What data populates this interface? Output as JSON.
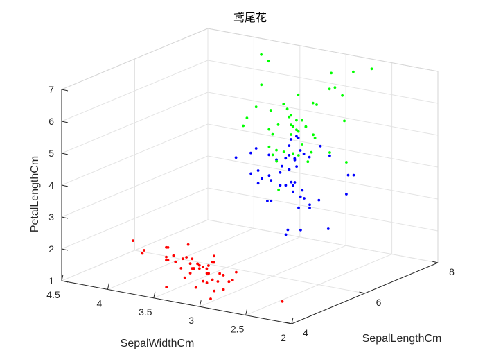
{
  "chart_data": {
    "type": "scatter3d",
    "title": "鸢尾花",
    "xlabel": "SepalLengthCm",
    "ylabel": "SepalWidthCm",
    "zlabel": "PetalLengthCm",
    "xlim": [
      4,
      8
    ],
    "ylim": [
      2,
      4.5
    ],
    "zlim": [
      1,
      7
    ],
    "x_ticks": [
      "4",
      "6",
      "8"
    ],
    "y_ticks": [
      "2",
      "2.5",
      "3",
      "3.5",
      "4",
      "4.5"
    ],
    "z_ticks": [
      "1",
      "2",
      "3",
      "4",
      "5",
      "6",
      "7"
    ],
    "grid": true,
    "series": [
      {
        "color": "#ff0000",
        "points": [
          [
            5.1,
            3.5,
            1.4
          ],
          [
            4.9,
            3.0,
            1.4
          ],
          [
            4.7,
            3.2,
            1.3
          ],
          [
            4.6,
            3.1,
            1.5
          ],
          [
            5.0,
            3.6,
            1.4
          ],
          [
            5.4,
            3.9,
            1.7
          ],
          [
            4.6,
            3.4,
            1.4
          ],
          [
            5.0,
            3.4,
            1.5
          ],
          [
            4.4,
            2.9,
            1.4
          ],
          [
            4.9,
            3.1,
            1.5
          ],
          [
            5.4,
            3.7,
            1.5
          ],
          [
            4.8,
            3.4,
            1.6
          ],
          [
            4.8,
            3.0,
            1.4
          ],
          [
            4.3,
            3.0,
            1.1
          ],
          [
            5.8,
            4.0,
            1.2
          ],
          [
            5.7,
            4.4,
            1.5
          ],
          [
            5.4,
            3.9,
            1.3
          ],
          [
            5.1,
            3.5,
            1.4
          ],
          [
            5.7,
            3.8,
            1.7
          ],
          [
            5.1,
            3.8,
            1.5
          ],
          [
            5.4,
            3.4,
            1.7
          ],
          [
            5.1,
            3.7,
            1.5
          ],
          [
            4.6,
            3.6,
            1.0
          ],
          [
            5.1,
            3.3,
            1.7
          ],
          [
            4.8,
            3.4,
            1.9
          ],
          [
            5.0,
            3.0,
            1.6
          ],
          [
            5.0,
            3.4,
            1.6
          ],
          [
            5.2,
            3.5,
            1.5
          ],
          [
            5.2,
            3.4,
            1.4
          ],
          [
            4.7,
            3.2,
            1.6
          ],
          [
            4.8,
            3.1,
            1.6
          ],
          [
            5.4,
            3.4,
            1.5
          ],
          [
            5.2,
            4.1,
            1.5
          ],
          [
            5.5,
            4.2,
            1.4
          ],
          [
            4.9,
            3.1,
            1.5
          ],
          [
            5.0,
            3.2,
            1.2
          ],
          [
            5.5,
            3.5,
            1.3
          ],
          [
            4.4,
            3.0,
            1.3
          ],
          [
            5.1,
            3.4,
            1.5
          ],
          [
            5.0,
            3.5,
            1.3
          ],
          [
            4.5,
            2.3,
            1.3
          ],
          [
            4.4,
            3.2,
            1.3
          ],
          [
            5.0,
            3.5,
            1.6
          ],
          [
            5.1,
            3.8,
            1.9
          ],
          [
            4.8,
            3.0,
            1.4
          ],
          [
            5.1,
            3.8,
            1.6
          ],
          [
            4.6,
            3.2,
            1.4
          ],
          [
            5.3,
            3.7,
            1.5
          ],
          [
            5.0,
            3.3,
            1.4
          ]
        ]
      },
      {
        "color": "#0000ff",
        "points": [
          [
            7.0,
            3.2,
            4.7
          ],
          [
            6.4,
            3.2,
            4.5
          ],
          [
            6.9,
            3.1,
            4.9
          ],
          [
            5.5,
            2.3,
            4.0
          ],
          [
            6.5,
            2.8,
            4.6
          ],
          [
            5.7,
            2.8,
            4.5
          ],
          [
            6.3,
            3.3,
            4.7
          ],
          [
            4.9,
            2.4,
            3.3
          ],
          [
            6.6,
            2.9,
            4.6
          ],
          [
            5.2,
            2.7,
            3.9
          ],
          [
            5.0,
            2.0,
            3.5
          ],
          [
            5.9,
            3.0,
            4.2
          ],
          [
            6.0,
            2.2,
            4.0
          ],
          [
            6.1,
            2.9,
            4.7
          ],
          [
            5.6,
            2.9,
            3.6
          ],
          [
            6.7,
            3.1,
            4.4
          ],
          [
            5.6,
            3.0,
            4.5
          ],
          [
            5.8,
            2.7,
            4.1
          ],
          [
            6.2,
            2.2,
            4.5
          ],
          [
            5.6,
            2.5,
            3.9
          ],
          [
            5.9,
            3.2,
            4.8
          ],
          [
            6.1,
            2.8,
            4.0
          ],
          [
            6.3,
            2.5,
            4.9
          ],
          [
            6.1,
            2.8,
            4.7
          ],
          [
            6.4,
            2.9,
            4.3
          ],
          [
            6.6,
            3.0,
            4.4
          ],
          [
            6.8,
            2.8,
            4.8
          ],
          [
            6.7,
            3.0,
            5.0
          ],
          [
            6.0,
            2.9,
            4.5
          ],
          [
            5.7,
            2.6,
            3.5
          ],
          [
            5.5,
            2.4,
            3.8
          ],
          [
            5.5,
            2.4,
            3.7
          ],
          [
            5.8,
            2.7,
            3.9
          ],
          [
            6.0,
            2.7,
            5.1
          ],
          [
            5.4,
            3.0,
            4.5
          ],
          [
            6.0,
            3.4,
            4.5
          ],
          [
            6.7,
            3.1,
            4.7
          ],
          [
            6.3,
            2.3,
            4.4
          ],
          [
            5.6,
            3.0,
            4.1
          ],
          [
            5.5,
            2.5,
            4.0
          ],
          [
            5.5,
            2.6,
            4.4
          ],
          [
            6.1,
            3.0,
            4.6
          ],
          [
            5.8,
            2.6,
            4.0
          ],
          [
            5.0,
            2.3,
            3.3
          ],
          [
            5.6,
            2.7,
            4.2
          ],
          [
            5.7,
            3.0,
            4.2
          ],
          [
            5.7,
            2.9,
            4.2
          ],
          [
            6.2,
            2.9,
            4.3
          ],
          [
            5.1,
            2.5,
            3.0
          ],
          [
            5.7,
            2.8,
            4.1
          ]
        ]
      },
      {
        "color": "#00ff00",
        "points": [
          [
            6.3,
            3.3,
            6.0
          ],
          [
            5.8,
            2.7,
            5.1
          ],
          [
            7.1,
            3.0,
            5.9
          ],
          [
            6.3,
            2.9,
            5.6
          ],
          [
            6.5,
            3.0,
            5.8
          ],
          [
            7.6,
            3.0,
            6.6
          ],
          [
            4.9,
            2.5,
            4.5
          ],
          [
            7.3,
            2.9,
            6.3
          ],
          [
            6.7,
            2.5,
            5.8
          ],
          [
            7.2,
            3.6,
            6.1
          ],
          [
            6.5,
            3.2,
            5.1
          ],
          [
            6.4,
            2.7,
            5.3
          ],
          [
            6.8,
            3.0,
            5.5
          ],
          [
            5.7,
            2.5,
            5.0
          ],
          [
            5.8,
            2.8,
            5.1
          ],
          [
            6.4,
            3.2,
            5.3
          ],
          [
            6.5,
            3.0,
            5.5
          ],
          [
            7.7,
            3.8,
            6.7
          ],
          [
            7.7,
            2.6,
            6.9
          ],
          [
            6.0,
            2.2,
            5.0
          ],
          [
            6.9,
            3.2,
            5.7
          ],
          [
            5.6,
            2.8,
            4.9
          ],
          [
            7.7,
            2.8,
            6.7
          ],
          [
            6.3,
            2.7,
            4.9
          ],
          [
            6.7,
            3.3,
            5.7
          ],
          [
            7.2,
            3.2,
            6.0
          ],
          [
            6.2,
            2.8,
            4.8
          ],
          [
            6.1,
            3.0,
            4.9
          ],
          [
            6.4,
            2.8,
            5.6
          ],
          [
            7.2,
            3.0,
            5.8
          ],
          [
            7.4,
            2.8,
            6.1
          ],
          [
            7.9,
            3.8,
            6.4
          ],
          [
            6.4,
            2.8,
            5.6
          ],
          [
            6.3,
            2.8,
            5.1
          ],
          [
            6.1,
            2.6,
            5.6
          ],
          [
            7.7,
            3.0,
            6.1
          ],
          [
            6.3,
            3.4,
            5.6
          ],
          [
            6.4,
            3.1,
            5.5
          ],
          [
            6.0,
            3.0,
            4.8
          ],
          [
            6.9,
            3.1,
            5.4
          ],
          [
            6.7,
            3.1,
            5.6
          ],
          [
            6.9,
            3.1,
            5.1
          ],
          [
            6.8,
            3.2,
            5.9
          ],
          [
            6.7,
            3.3,
            5.7
          ],
          [
            6.7,
            3.0,
            5.2
          ],
          [
            6.3,
            2.5,
            5.0
          ],
          [
            6.5,
            3.0,
            5.2
          ],
          [
            6.2,
            3.4,
            5.4
          ],
          [
            5.9,
            3.0,
            5.1
          ]
        ]
      }
    ]
  }
}
